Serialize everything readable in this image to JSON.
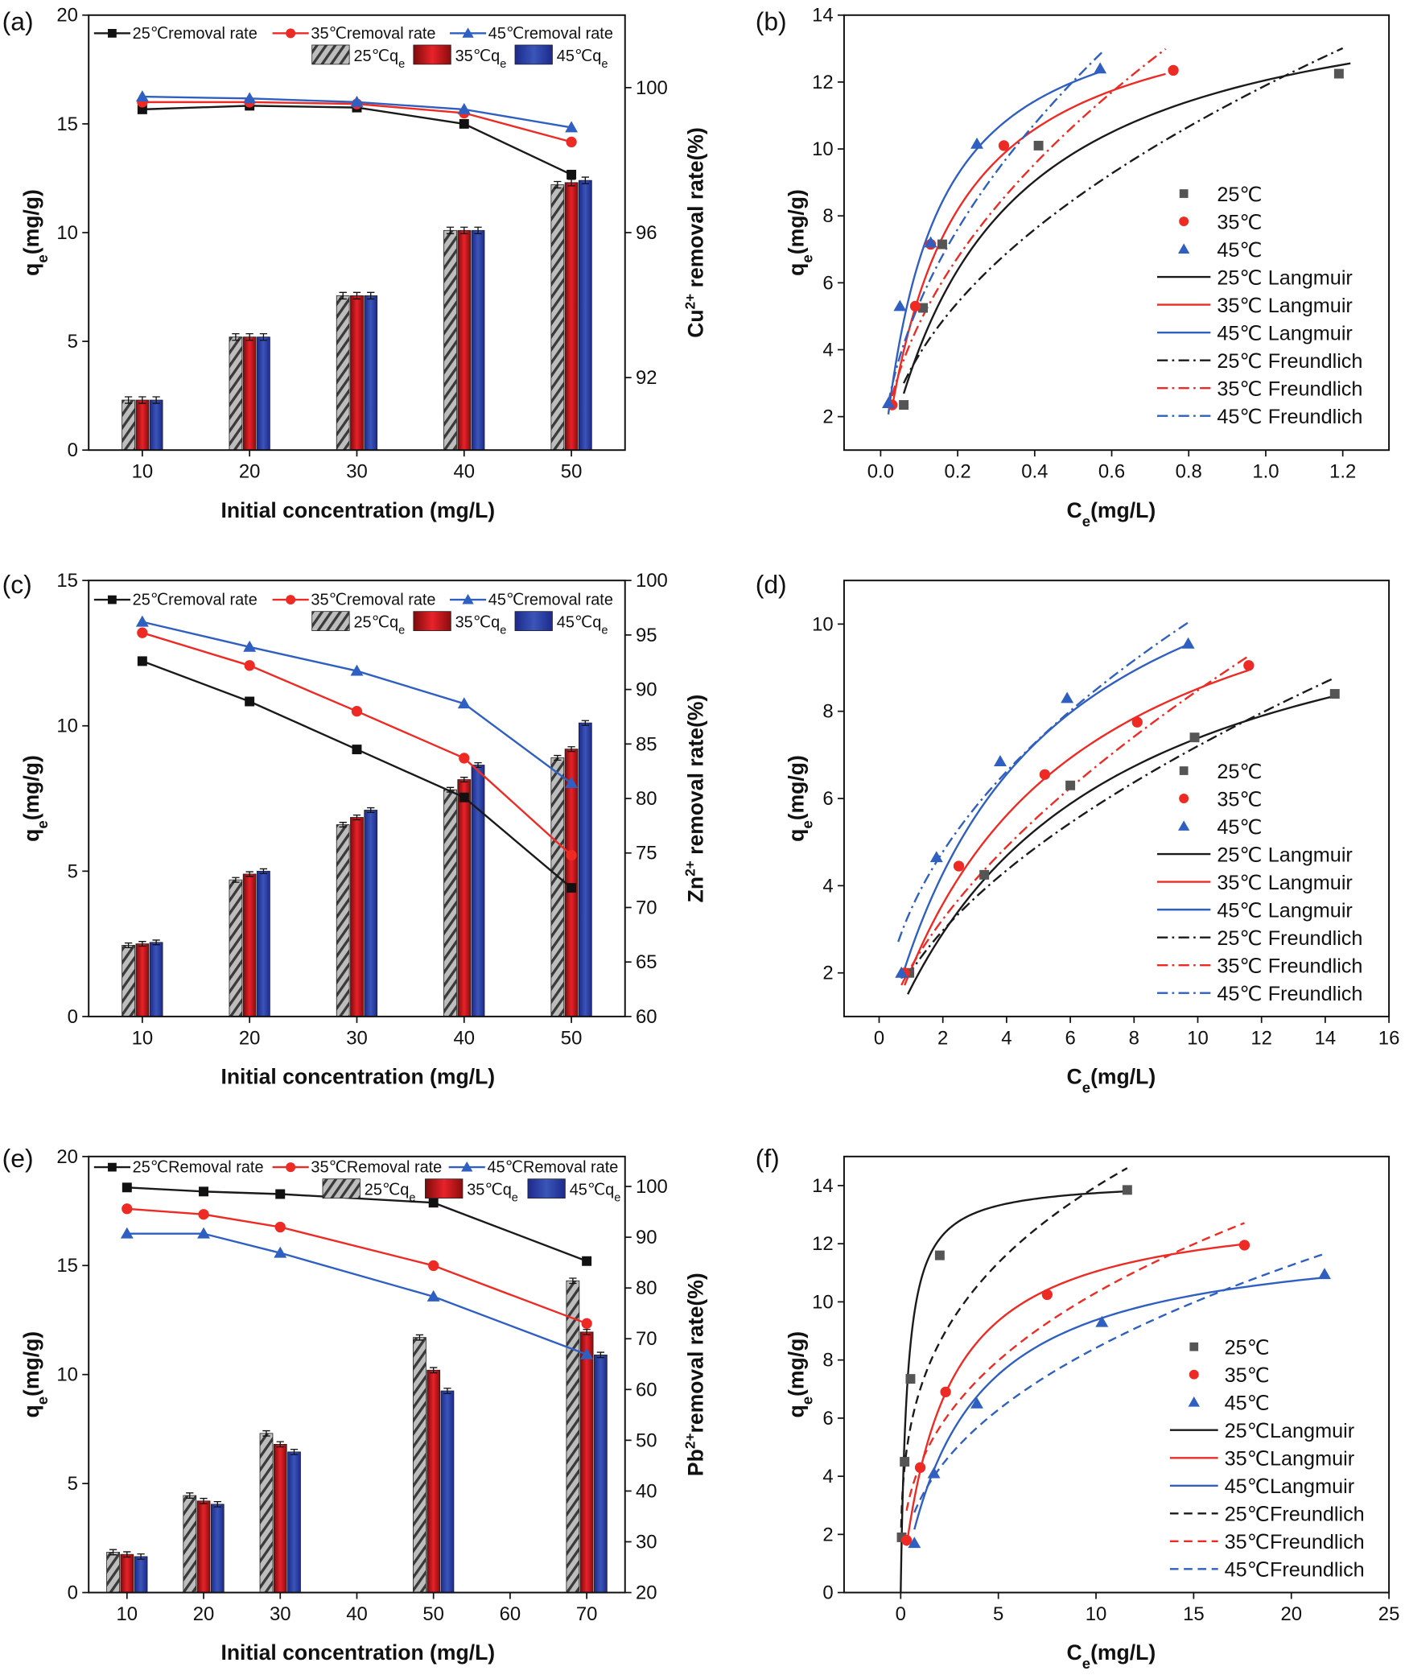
{
  "colors": {
    "c25": "#1a1a1a",
    "c35": "#ee2a24",
    "c45": "#2f5fc0",
    "bar35": "#e01f26",
    "bar45": "#2f45a8"
  },
  "chart_data": [
    {
      "panel": "(a)",
      "type": "bar",
      "categories": [
        10,
        20,
        30,
        40,
        50
      ],
      "xlim": [
        5,
        55
      ],
      "xticks": [
        10,
        20,
        30,
        40,
        50
      ],
      "xtick_labels": [
        "10",
        "20",
        "30",
        "40",
        "50"
      ],
      "ylim": [
        0,
        20
      ],
      "yticks": [
        0,
        5,
        10,
        15,
        20
      ],
      "ytick_labels": [
        "0",
        "5",
        "10",
        "15",
        "20"
      ],
      "y2lim": [
        90,
        102
      ],
      "y2ticks": [
        92,
        96,
        100
      ],
      "y2tick_labels": [
        "92",
        "96",
        "100"
      ],
      "xlabel": "Initial concentration (mg/L)",
      "ylabel": {
        "main": "q",
        "sub": "e",
        "rest": "(mg/g)"
      },
      "y2label": {
        "ion": "Cu",
        "sup": "2+",
        "rest": " removal rate(%)"
      },
      "bars": [
        {
          "name": "25℃q",
          "sub": "e",
          "values": [
            2.3,
            5.2,
            7.1,
            10.1,
            12.2
          ],
          "err": 0.15
        },
        {
          "name": "35℃q",
          "sub": "e",
          "values": [
            2.3,
            5.2,
            7.1,
            10.1,
            12.3
          ],
          "err": 0.15
        },
        {
          "name": "45℃q",
          "sub": "e",
          "values": [
            2.3,
            5.2,
            7.1,
            10.1,
            12.4
          ],
          "err": 0.15
        }
      ],
      "lines": [
        {
          "name": "25℃removal rate",
          "values": [
            99.4,
            99.5,
            99.45,
            99.0,
            97.6
          ]
        },
        {
          "name": "35℃removal rate",
          "values": [
            99.6,
            99.6,
            99.55,
            99.3,
            98.5
          ]
        },
        {
          "name": "45℃removal rate",
          "values": [
            99.75,
            99.7,
            99.6,
            99.4,
            98.9
          ]
        }
      ]
    },
    {
      "panel": "(b)",
      "type": "scatter",
      "xlim": [
        -0.095,
        1.32
      ],
      "xticks": [
        0,
        0.2,
        0.4,
        0.6,
        0.8,
        1.0,
        1.2
      ],
      "xtick_labels": [
        "0.0",
        "0.2",
        "0.4",
        "0.6",
        "0.8",
        "1.0",
        "1.2"
      ],
      "ylim": [
        1,
        14
      ],
      "yticks": [
        2,
        4,
        6,
        8,
        10,
        12,
        14
      ],
      "ytick_labels": [
        "2",
        "4",
        "6",
        "8",
        "10",
        "12",
        "14"
      ],
      "xlabel": {
        "main": "C",
        "sub": "e",
        "rest": "(mg/L)"
      },
      "ylabel": {
        "main": "q",
        "sub": "e",
        "rest": "(mg/g)"
      },
      "points": [
        {
          "name": "25℃",
          "x": [
            0.06,
            0.11,
            0.16,
            0.41,
            1.19
          ],
          "y": [
            2.35,
            5.25,
            7.15,
            10.1,
            12.25
          ]
        },
        {
          "name": "35℃",
          "x": [
            0.03,
            0.09,
            0.13,
            0.32,
            0.76
          ],
          "y": [
            2.35,
            5.3,
            7.15,
            10.1,
            12.35
          ]
        },
        {
          "name": "45℃",
          "x": [
            0.02,
            0.05,
            0.13,
            0.25,
            0.57
          ],
          "y": [
            2.4,
            5.3,
            7.2,
            10.15,
            12.4
          ]
        }
      ],
      "fits": [
        {
          "name": "25℃ Langmuir",
          "model": "langmuir",
          "qm": 15.5,
          "K": 3.5,
          "range": [
            0.06,
            1.22
          ]
        },
        {
          "name": "35℃ Langmuir",
          "model": "langmuir",
          "qm": 15,
          "K": 6,
          "range": [
            0.03,
            0.74
          ]
        },
        {
          "name": "45℃ Langmuir",
          "model": "langmuir",
          "qm": 15,
          "K": 8,
          "range": [
            0.02,
            0.58
          ]
        },
        {
          "name": "25℃ Freundlich",
          "model": "freundlich",
          "Kf": 11.9,
          "n_inv": 0.49,
          "range": [
            0.06,
            1.2
          ]
        },
        {
          "name": "35℃ Freundlich",
          "model": "freundlich",
          "Kf": 15.1,
          "n_inv": 0.5,
          "range": [
            0.03,
            0.74
          ]
        },
        {
          "name": "45℃ Freundlich",
          "model": "freundlich",
          "Kf": 17,
          "n_inv": 0.5,
          "range": [
            0.02,
            0.58
          ]
        }
      ]
    },
    {
      "panel": "(c)",
      "type": "bar",
      "categories": [
        10,
        20,
        30,
        40,
        50
      ],
      "xlim": [
        5,
        55
      ],
      "xticks": [
        10,
        20,
        30,
        40,
        50
      ],
      "xtick_labels": [
        "10",
        "20",
        "30",
        "40",
        "50"
      ],
      "ylim": [
        0,
        15
      ],
      "yticks": [
        0,
        5,
        10,
        15
      ],
      "ytick_labels": [
        "0",
        "5",
        "10",
        "15"
      ],
      "y2lim": [
        60,
        100
      ],
      "y2ticks": [
        60,
        65,
        70,
        75,
        80,
        85,
        90,
        95,
        100
      ],
      "y2tick_labels": [
        "60",
        "65",
        "70",
        "75",
        "80",
        "85",
        "90",
        "95",
        "100"
      ],
      "xlabel": "Initial concentration (mg/L)",
      "ylabel": {
        "main": "q",
        "sub": "e",
        "rest": "(mg/g)"
      },
      "y2label": {
        "ion": "Zn",
        "sup": "2+",
        "rest": " removal rate(%)"
      },
      "bars": [
        {
          "name": "25℃q",
          "sub": "e",
          "values": [
            2.45,
            4.7,
            6.6,
            7.8,
            8.9
          ],
          "err": 0.08
        },
        {
          "name": "35℃q",
          "sub": "e",
          "values": [
            2.5,
            4.9,
            6.85,
            8.15,
            9.2
          ],
          "err": 0.08
        },
        {
          "name": "45℃q",
          "sub": "e",
          "values": [
            2.55,
            5.0,
            7.1,
            8.65,
            10.1
          ],
          "err": 0.08
        }
      ],
      "lines": [
        {
          "name": "25℃removal rate",
          "values": [
            92.6,
            88.9,
            84.5,
            80.1,
            71.8
          ]
        },
        {
          "name": "35℃removal rate",
          "values": [
            95.2,
            92.2,
            88.0,
            83.7,
            74.8
          ]
        },
        {
          "name": "45℃removal rate",
          "values": [
            96.2,
            93.9,
            91.7,
            88.7,
            81.4
          ]
        }
      ]
    },
    {
      "panel": "(d)",
      "type": "scatter",
      "xlim": [
        -1.1,
        16
      ],
      "xticks": [
        0,
        2,
        4,
        6,
        8,
        10,
        12,
        14,
        16
      ],
      "xtick_labels": [
        "0",
        "2",
        "4",
        "6",
        "8",
        "10",
        "12",
        "14",
        "16"
      ],
      "ylim": [
        1,
        11
      ],
      "yticks": [
        2,
        4,
        6,
        8,
        10
      ],
      "ytick_labels": [
        "2",
        "4",
        "6",
        "8",
        "10"
      ],
      "xlabel": {
        "main": "C",
        "sub": "e",
        "rest": "(mg/L)"
      },
      "ylabel": {
        "main": "q",
        "sub": "e",
        "rest": "(mg/g)"
      },
      "points": [
        {
          "name": "25℃",
          "x": [
            0.95,
            3.3,
            6.0,
            9.9,
            14.3
          ],
          "y": [
            2.0,
            4.25,
            6.3,
            7.4,
            8.4
          ]
        },
        {
          "name": "35℃",
          "x": [
            0.8,
            2.5,
            5.2,
            8.1,
            11.6
          ],
          "y": [
            2.0,
            4.45,
            6.55,
            7.75,
            9.05
          ]
        },
        {
          "name": "45℃",
          "x": [
            0.7,
            1.8,
            3.8,
            5.9,
            9.7
          ],
          "y": [
            2.0,
            4.65,
            6.85,
            8.3,
            9.55
          ]
        }
      ],
      "fits": [
        {
          "name": "25℃ Langmuir",
          "model": "langmuir",
          "qm": 12,
          "K": 0.16,
          "range": [
            0.9,
            14.3
          ]
        },
        {
          "name": "35℃ Langmuir",
          "model": "langmuir",
          "qm": 13,
          "K": 0.19,
          "range": [
            0.8,
            11.6
          ]
        },
        {
          "name": "45℃ Langmuir",
          "model": "langmuir",
          "qm": 14,
          "K": 0.22,
          "range": [
            0.7,
            9.7
          ]
        },
        {
          "name": "25℃ Freundlich",
          "model": "freundlich",
          "Kf": 2.03,
          "n_inv": 0.55,
          "range": [
            0.9,
            14.3
          ]
        },
        {
          "name": "35℃ Freundlich",
          "model": "freundlich",
          "Kf": 2.13,
          "n_inv": 0.6,
          "range": [
            0.7,
            11.6
          ]
        },
        {
          "name": "45℃ Freundlich",
          "model": "freundlich",
          "Kf": 3.45,
          "n_inv": 0.47,
          "range": [
            0.6,
            9.7
          ]
        }
      ]
    },
    {
      "panel": "(e)",
      "type": "bar",
      "categories": [
        10,
        20,
        30,
        50,
        70
      ],
      "xlim": [
        5,
        75
      ],
      "xticks": [
        10,
        20,
        30,
        40,
        50,
        60,
        70
      ],
      "xtick_labels": [
        "10",
        "20",
        "30",
        "40",
        "50",
        "60",
        "70"
      ],
      "ylim": [
        0,
        20
      ],
      "yticks": [
        0,
        5,
        10,
        15,
        20
      ],
      "ytick_labels": [
        "0",
        "5",
        "10",
        "15",
        "20"
      ],
      "y2lim": [
        20,
        105.9
      ],
      "y2ticks": [
        20,
        30,
        40,
        50,
        60,
        70,
        80,
        90,
        100
      ],
      "y2tick_labels": [
        "20",
        "30",
        "40",
        "50",
        "60",
        "70",
        "80",
        "90",
        "100"
      ],
      "xlabel": "Initial concentration (mg/L)",
      "ylabel": {
        "main": "q",
        "sub": "e",
        "rest": "(mg/g)"
      },
      "y2label": {
        "ion": "Pb",
        "sup": "2+",
        "rest": "removal rate(%)"
      },
      "bars": [
        {
          "name": "25℃q",
          "sub": "e",
          "values": [
            1.85,
            4.45,
            7.3,
            11.7,
            14.3
          ],
          "err": 0.12
        },
        {
          "name": "35℃q",
          "sub": "e",
          "values": [
            1.75,
            4.2,
            6.8,
            10.2,
            11.95
          ],
          "err": 0.12
        },
        {
          "name": "45℃q",
          "sub": "e",
          "values": [
            1.65,
            4.05,
            6.45,
            9.25,
            10.9
          ],
          "err": 0.12
        }
      ],
      "lines": [
        {
          "name": "25℃Removal rate",
          "values": [
            99.8,
            99.0,
            98.5,
            96.8,
            85.3
          ]
        },
        {
          "name": "35℃Removal rate",
          "values": [
            95.6,
            94.5,
            92.0,
            84.4,
            73.0
          ]
        },
        {
          "name": "45℃Removal rate",
          "values": [
            90.7,
            90.7,
            86.9,
            78.3,
            66.9
          ]
        }
      ]
    },
    {
      "panel": "(f)",
      "type": "scatter",
      "xlim": [
        -2.9,
        25
      ],
      "xticks": [
        0,
        5,
        10,
        15,
        20,
        25
      ],
      "xtick_labels": [
        "0",
        "5",
        "10",
        "15",
        "20",
        "25"
      ],
      "ylim": [
        0,
        15
      ],
      "yticks": [
        0,
        2,
        4,
        6,
        8,
        10,
        12,
        14
      ],
      "ytick_labels": [
        "0",
        "2",
        "4",
        "6",
        "8",
        "10",
        "12",
        "14"
      ],
      "xlabel": {
        "main": "C",
        "sub": "e",
        "rest": "(mg/L)"
      },
      "ylabel": {
        "main": "q",
        "sub": "e",
        "rest": "(mg/g)"
      },
      "points": [
        {
          "name": "25℃",
          "x": [
            0.05,
            0.2,
            0.5,
            2.0,
            11.6
          ],
          "y": [
            1.9,
            4.5,
            7.35,
            11.6,
            13.85
          ]
        },
        {
          "name": "35℃",
          "x": [
            0.3,
            1.0,
            2.3,
            7.5,
            17.6
          ],
          "y": [
            1.8,
            4.3,
            6.9,
            10.25,
            11.95
          ]
        },
        {
          "name": "45℃",
          "x": [
            0.7,
            1.7,
            3.9,
            10.3,
            21.7
          ],
          "y": [
            1.7,
            4.1,
            6.5,
            9.3,
            10.95
          ]
        }
      ],
      "fits": [
        {
          "name": "25℃Langmuir",
          "model": "langmuir",
          "qm": 14.2,
          "K": 3,
          "range": [
            0,
            11.6
          ]
        },
        {
          "name": "35℃Langmuir",
          "model": "langmuir",
          "qm": 13.5,
          "K": 0.45,
          "range": [
            0.3,
            17.6
          ]
        },
        {
          "name": "45℃Langmuir",
          "model": "langmuir",
          "qm": 12.5,
          "K": 0.3,
          "range": [
            0.7,
            21.7
          ]
        },
        {
          "name": "25℃Freundlich",
          "model": "freundlich",
          "Kf": 7.0,
          "n_inv": 0.3,
          "range": [
            0.01,
            11.6
          ]
        },
        {
          "name": "35℃Freundlich",
          "model": "freundlich",
          "Kf": 4.4,
          "n_inv": 0.37,
          "range": [
            0.3,
            17.6
          ]
        },
        {
          "name": "45℃Freundlich",
          "model": "freundlich",
          "Kf": 3.2,
          "n_inv": 0.42,
          "range": [
            0.7,
            21.7
          ]
        }
      ]
    }
  ]
}
